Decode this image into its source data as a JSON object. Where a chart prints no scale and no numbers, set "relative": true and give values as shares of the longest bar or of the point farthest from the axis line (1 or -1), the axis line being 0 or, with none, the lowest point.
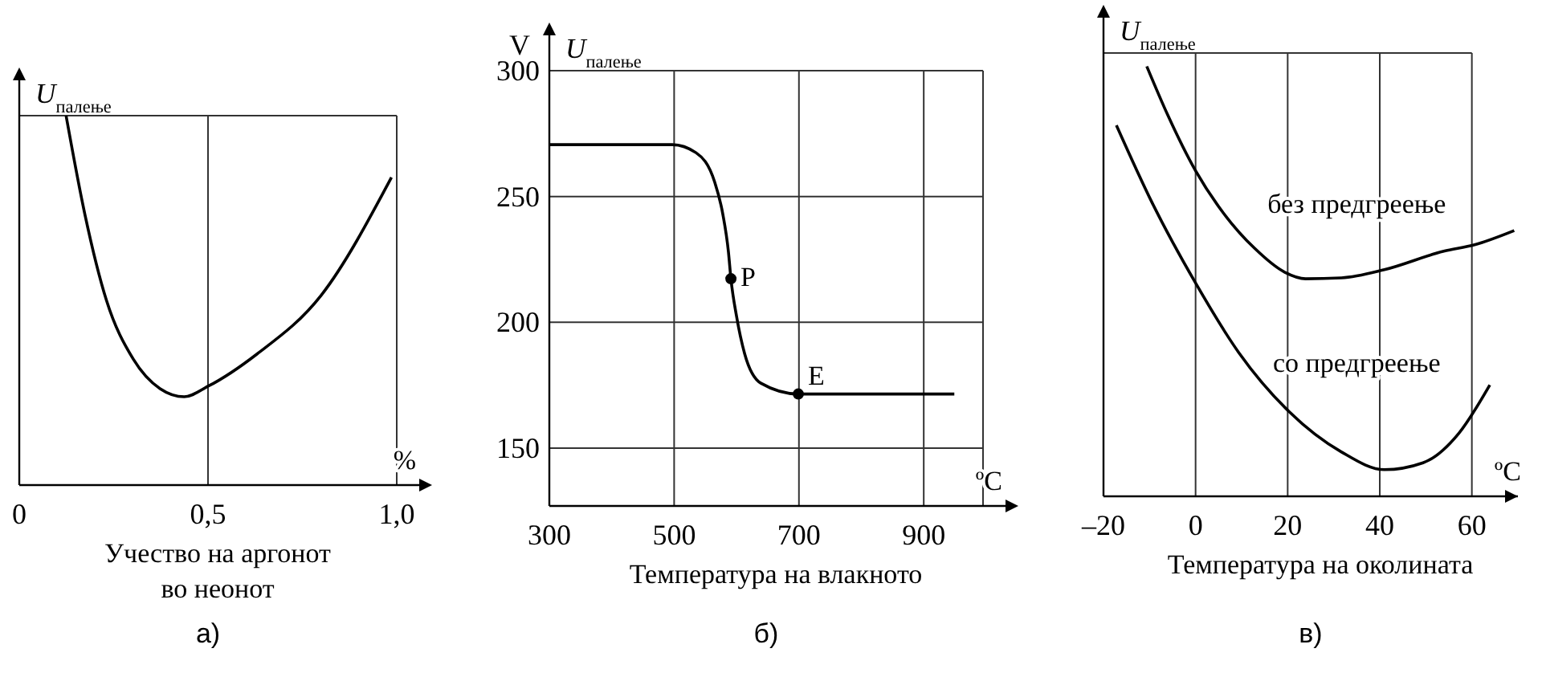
{
  "chart_data": [
    {
      "type": "line",
      "xlabel": "Учество на аргонот во неонот",
      "ylabel": "U$_{палење}$",
      "relative": true,
      "xlim": [
        0,
        1
      ],
      "xticks": [
        0,
        {
          "value": 0.5,
          "label": "0,5"
        },
        {
          "value": 1,
          "label": "1,0"
        }
      ],
      "grid": "x",
      "annotations": [
        "%",
        "а)"
      ],
      "series": [
        {
          "color": "#000000",
          "x": [
            0.124,
            0.174,
            0.231,
            0.302,
            0.373,
            0.437,
            0.501,
            0.63,
            0.8,
            0.986
          ],
          "values": [
            1.0,
            0.732,
            0.5,
            0.341,
            0.261,
            0.239,
            0.268,
            0.355,
            0.514,
            0.833
          ]
        }
      ]
    },
    {
      "type": "line",
      "xlabel": "Температура на влакното",
      "ylabel": "U$_{палење}$",
      "xlim": [
        300,
        995
      ],
      "ylim": [
        127,
        300
      ],
      "xticks": [
        300,
        500,
        700,
        900
      ],
      "yticks": [
        150,
        200,
        250,
        300
      ],
      "grid": true,
      "annotations": [
        "ºC",
        "б)",
        "V",
        {
          "text": "P",
          "x": 591,
          "y": 217
        },
        {
          "text": "E",
          "x": 699,
          "y": 171.5
        }
      ],
      "series": [
        {
          "color": "#000000",
          "x": [
            300,
            497,
            535,
            565,
            578,
            587,
            591,
            600,
            613,
            639,
            699,
            949
          ],
          "values": [
            270.6,
            270.6,
            267.4,
            255.7,
            243,
            228,
            217.3,
            202.4,
            187.5,
            175.8,
            171.5,
            171.5
          ]
        },
        {
          "type": "scatter",
          "color": "#000000",
          "marker": "circle",
          "x": [
            591,
            699
          ],
          "values": [
            217.3,
            171.5
          ]
        }
      ]
    },
    {
      "type": "line",
      "xlabel": "Температура на околината",
      "ylabel": "U$_{палење}$",
      "relative": true,
      "xlim": [
        -20,
        70
      ],
      "xticks": [
        {
          "value": -20,
          "label": "–20"
        },
        0,
        20,
        40,
        60
      ],
      "grid": "x",
      "annotations": [
        "ºC",
        "в)"
      ],
      "series": [
        {
          "name": "без предгреење",
          "color": "#000000",
          "x": [
            -10.6,
            -6.1,
            0,
            6.1,
            12.8,
            19.4,
            23.9,
            31.7,
            41,
            53.9,
            60.6,
            69.2
          ],
          "values": [
            1.0,
            0.888,
            0.757,
            0.658,
            0.577,
            0.521,
            0.506,
            0.508,
            0.527,
            0.57,
            0.585,
            0.618
          ]
        },
        {
          "name": "со предгреење",
          "color": "#000000",
          "x": [
            -17.2,
            -9.4,
            0,
            9.4,
            20.3,
            31.7,
            41,
            49.4,
            57.2,
            63.9
          ],
          "values": [
            0.863,
            0.682,
            0.496,
            0.334,
            0.197,
            0.103,
            0.062,
            0.078,
            0.147,
            0.259
          ]
        }
      ]
    }
  ]
}
